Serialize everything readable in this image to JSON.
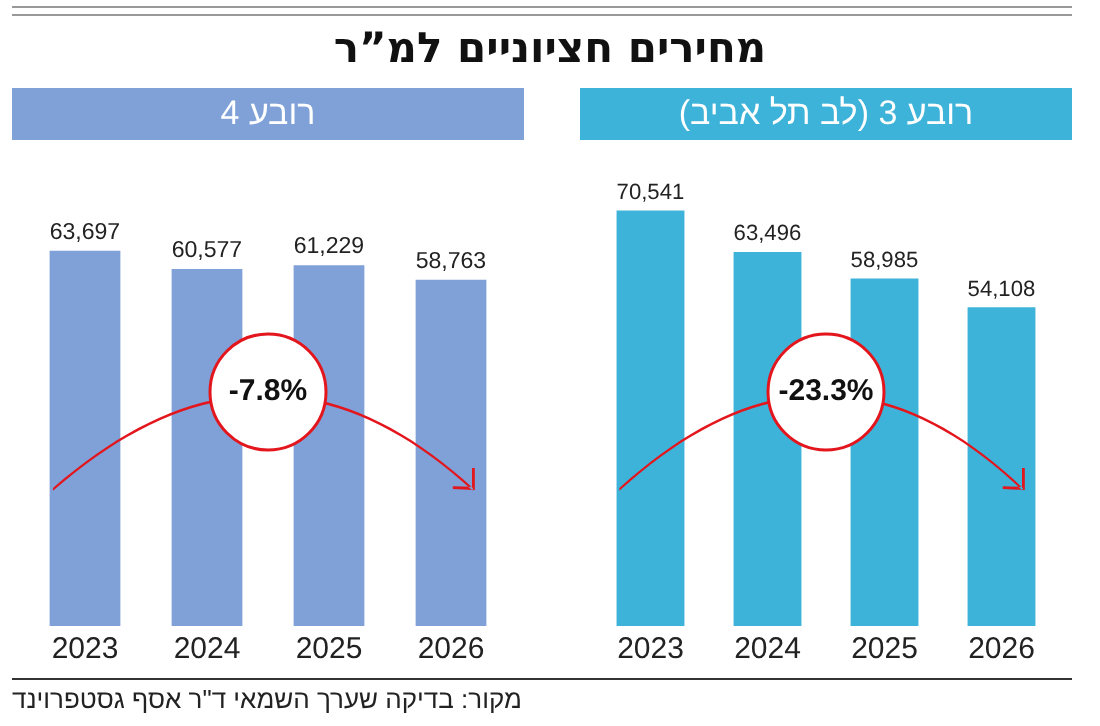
{
  "chart_data": [
    {
      "type": "other",
      "title": "מחירים חציוניים למ”ר",
      "annotations": [
        "מקור: בדיקה שערך השמאי ד\"ר אסף גסטפרוינד"
      ]
    },
    {
      "type": "bar",
      "title": "רובע 4",
      "categories": [
        "2023",
        "2024",
        "2025",
        "2026"
      ],
      "values": [
        63697,
        60577,
        61229,
        58763
      ],
      "value_labels": [
        "63,697",
        "60,577",
        "61,229",
        "58,763"
      ],
      "color": "#7fa1d7",
      "annotations": [
        "-7.8%"
      ]
    },
    {
      "type": "bar",
      "title": "רובע 3 (לב תל אביב)",
      "categories": [
        "2023",
        "2024",
        "2025",
        "2026"
      ],
      "values": [
        70541,
        63496,
        58985,
        54108
      ],
      "value_labels": [
        "70,541",
        "63,496",
        "58,985",
        "54,108"
      ],
      "color": "#3eb3d9",
      "annotations": [
        "-23.3%"
      ]
    }
  ]
}
